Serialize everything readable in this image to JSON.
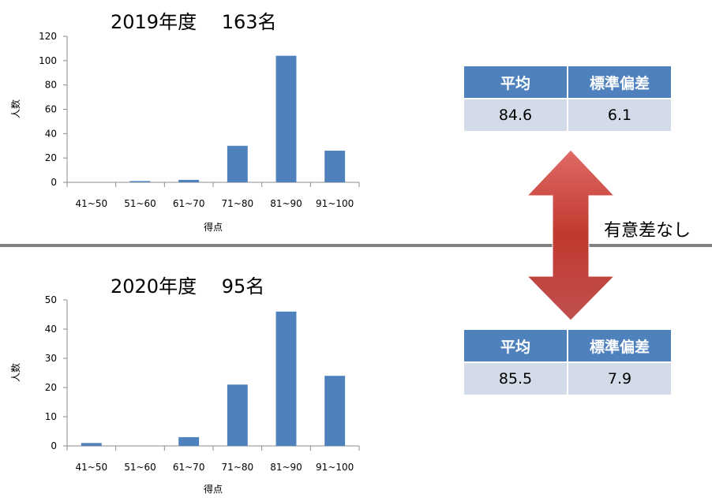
{
  "chart_data": [
    {
      "type": "bar",
      "title": "2019年度　 163名",
      "xlabel": "得点",
      "ylabel": "人数",
      "categories": [
        "41~50",
        "51~60",
        "61~70",
        "71~80",
        "81~90",
        "91~100"
      ],
      "values": [
        0,
        1,
        2,
        30,
        104,
        26
      ],
      "ylim": [
        0,
        120
      ],
      "yticks": [
        0,
        20,
        40,
        60,
        80,
        100,
        120
      ],
      "color": "#4f81bd"
    },
    {
      "type": "bar",
      "title": "2020年度　 95名",
      "xlabel": "得点",
      "ylabel": "人数",
      "categories": [
        "41~50",
        "51~60",
        "61~70",
        "71~80",
        "81~90",
        "91~100"
      ],
      "values": [
        1,
        0,
        3,
        21,
        46,
        24
      ],
      "ylim": [
        0,
        50
      ],
      "yticks": [
        0,
        10,
        20,
        30,
        40,
        50
      ],
      "color": "#4f81bd"
    }
  ],
  "stats": [
    {
      "mean_label": "平均",
      "sd_label": "標準偏差",
      "mean": "84.6",
      "sd": "6.1"
    },
    {
      "mean_label": "平均",
      "sd_label": "標準偏差",
      "mean": "85.5",
      "sd": "7.9"
    }
  ],
  "comparison_text": "有意差なし",
  "colors": {
    "bar": "#4f81bd",
    "header": "#4f81bd",
    "cell": "#d3dbe8",
    "arrow": "#c0504d",
    "divider": "#808080"
  }
}
